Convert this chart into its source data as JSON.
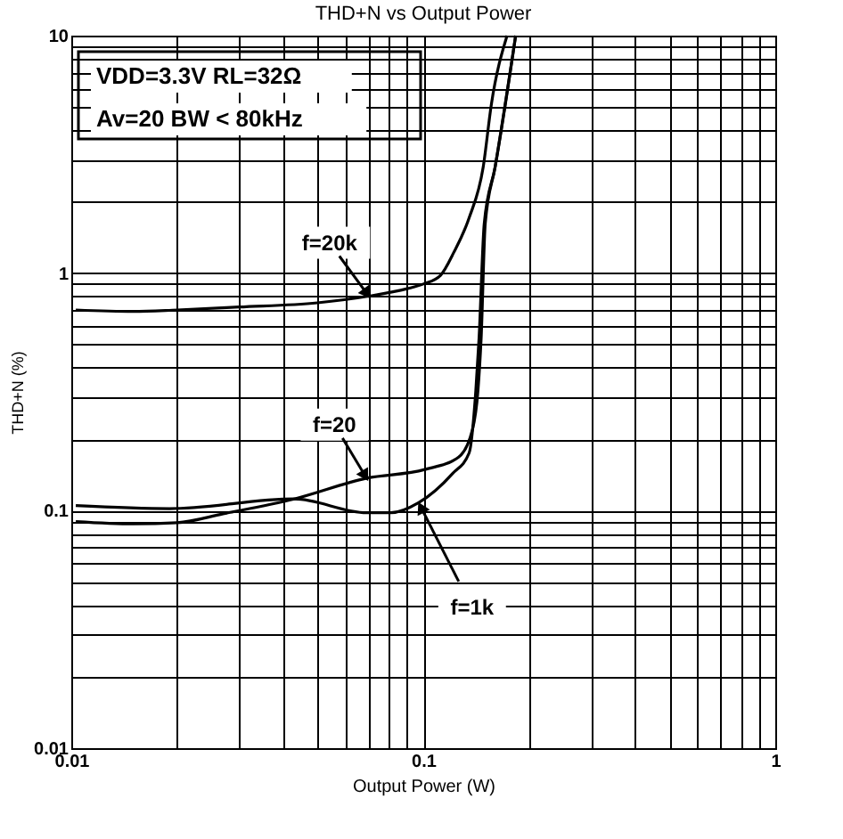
{
  "chart_data": {
    "type": "line",
    "title": "THD+N vs Output Power",
    "xlabel": "Output Power (W)",
    "ylabel": "THD+N (%)",
    "annotations": [
      "VDD=3.3V   RL=32Ω",
      "Av=20   BW < 80kHz"
    ],
    "log": "xy",
    "grid": true,
    "xlim": [
      0.01,
      1
    ],
    "ylim": [
      0.01,
      10
    ],
    "xticks": [
      0.01,
      {
        "value": 0.02,
        "label": null
      },
      {
        "value": 0.03,
        "label": null
      },
      {
        "value": 0.04,
        "label": null
      },
      {
        "value": 0.05,
        "label": null
      },
      {
        "value": 0.06,
        "label": null
      },
      {
        "value": 0.07,
        "label": null
      },
      {
        "value": 0.08,
        "label": null
      },
      {
        "value": 0.09,
        "label": null
      },
      0.1,
      {
        "value": 0.2,
        "label": null
      },
      {
        "value": 0.3,
        "label": null
      },
      {
        "value": 0.4,
        "label": null
      },
      {
        "value": 0.5,
        "label": null
      },
      {
        "value": 0.6,
        "label": null
      },
      {
        "value": 0.7,
        "label": null
      },
      {
        "value": 0.8,
        "label": null
      },
      {
        "value": 0.9,
        "label": null
      },
      1
    ],
    "yticks": [
      0.01,
      {
        "value": 0.02,
        "label": null
      },
      {
        "value": 0.03,
        "label": null
      },
      {
        "value": 0.04,
        "label": null
      },
      {
        "value": 0.05,
        "label": null
      },
      {
        "value": 0.06,
        "label": null
      },
      {
        "value": 0.07,
        "label": null
      },
      {
        "value": 0.08,
        "label": null
      },
      {
        "value": 0.09,
        "label": null
      },
      0.1,
      {
        "value": 0.2,
        "label": null
      },
      {
        "value": 0.3,
        "label": null
      },
      {
        "value": 0.4,
        "label": null
      },
      {
        "value": 0.5,
        "label": null
      },
      {
        "value": 0.6,
        "label": null
      },
      {
        "value": 0.7,
        "label": null
      },
      {
        "value": 0.8,
        "label": null
      },
      {
        "value": 0.9,
        "label": null
      },
      1,
      {
        "value": 2,
        "label": null
      },
      {
        "value": 3,
        "label": null
      },
      {
        "value": 4,
        "label": null
      },
      {
        "value": 5,
        "label": null
      },
      {
        "value": 6,
        "label": null
      },
      {
        "value": 7,
        "label": null
      },
      {
        "value": 8,
        "label": null
      },
      {
        "value": 9,
        "label": null
      },
      10
    ],
    "line_style": "solid",
    "series": [
      {
        "name": "f=20k",
        "color": "#000000",
        "x": [
          0.0103,
          0.015,
          0.02,
          0.03,
          0.05,
          0.07,
          0.09,
          0.1,
          0.112,
          0.122,
          0.135,
          0.148,
          0.156,
          0.173
        ],
        "values": [
          0.7,
          0.69,
          0.7,
          0.72,
          0.75,
          0.8,
          0.86,
          0.9,
          0.98,
          1.22,
          1.71,
          2.8,
          5.1,
          10
        ]
      },
      {
        "name": "f=20",
        "color": "#000000",
        "x": [
          0.0103,
          0.015,
          0.02,
          0.027,
          0.043,
          0.069,
          0.101,
          0.126,
          0.138,
          0.143,
          0.146,
          0.15,
          0.16,
          0.183
        ],
        "values": [
          0.09,
          0.088,
          0.089,
          0.097,
          0.112,
          0.137,
          0.149,
          0.168,
          0.22,
          0.32,
          0.53,
          1.62,
          2.8,
          10
        ]
      },
      {
        "name": "f=1k",
        "color": "#000000",
        "x": [
          0.0103,
          0.019,
          0.043,
          0.069,
          0.081,
          0.097,
          0.121,
          0.135,
          0.141,
          0.144,
          0.149,
          0.16,
          0.183
        ],
        "values": [
          0.105,
          0.102,
          0.112,
          0.098,
          0.098,
          0.108,
          0.143,
          0.175,
          0.32,
          0.53,
          1.62,
          2.8,
          10
        ]
      }
    ]
  }
}
